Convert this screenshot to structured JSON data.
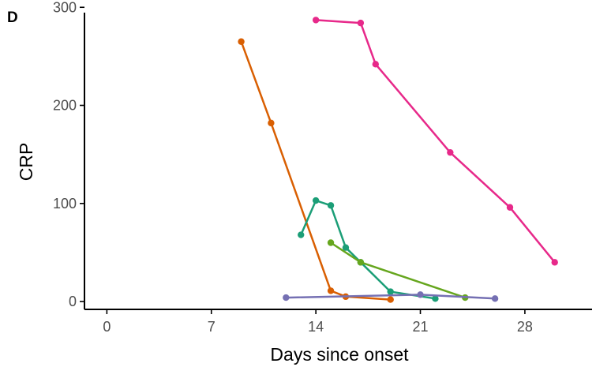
{
  "panel_label": "D",
  "chart_data": {
    "type": "line",
    "title": "",
    "xlabel": "Days since onset",
    "ylabel": "CRP",
    "xlim": [
      -1.5,
      32.5
    ],
    "ylim": [
      -8,
      301
    ],
    "xticks": [
      0,
      7,
      14,
      21,
      28
    ],
    "yticks": [
      0,
      100,
      200,
      300
    ],
    "grid": false,
    "legend": "none",
    "series": [
      {
        "color": "#D95F02",
        "x": [
          9,
          11,
          15,
          16,
          19
        ],
        "y": [
          265,
          182,
          11,
          5,
          2
        ]
      },
      {
        "color": "#E7298A",
        "x": [
          14,
          17,
          18,
          23,
          27,
          30
        ],
        "y": [
          287,
          284,
          242,
          152,
          96,
          40
        ]
      },
      {
        "color": "#1B9E77",
        "x": [
          13,
          14,
          15,
          16,
          17,
          19,
          22
        ],
        "y": [
          68,
          103,
          98,
          55,
          40,
          10,
          3
        ]
      },
      {
        "color": "#66A61E",
        "x": [
          15,
          17,
          24
        ],
        "y": [
          60,
          40,
          4
        ]
      },
      {
        "color": "#7570B3",
        "x": [
          12,
          21,
          26
        ],
        "y": [
          4,
          7,
          3
        ]
      }
    ]
  }
}
